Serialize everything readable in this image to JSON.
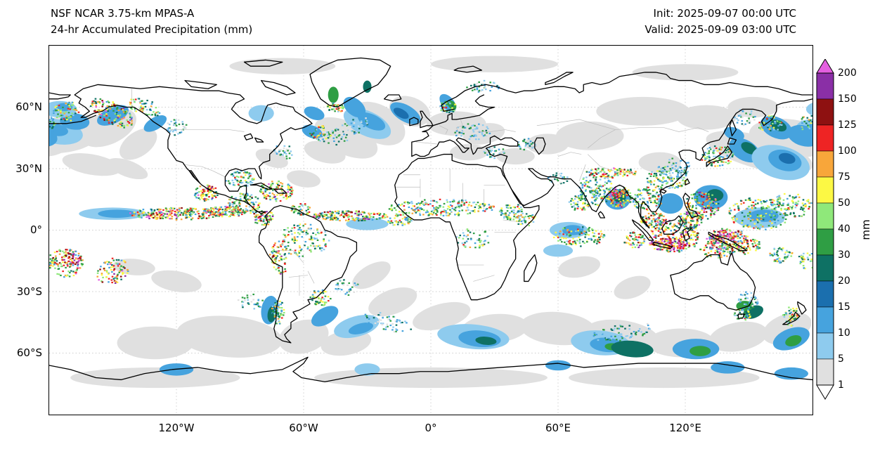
{
  "header": {
    "title_line1": "NSF NCAR 3.75-km MPAS-A",
    "title_line2": "24-hr Accumulated Precipitation (mm)",
    "init_label": "Init: 2025-09-07 00:00 UTC",
    "valid_label": "Valid: 2025-09-09 03:00 UTC"
  },
  "map": {
    "lat_ticks": [
      "60°N",
      "30°N",
      "0°",
      "30°S",
      "60°S"
    ],
    "lon_ticks": [
      "120°W",
      "60°W",
      "0°",
      "60°E",
      "120°E"
    ]
  },
  "colorbar": {
    "unit": "mm",
    "tick_labels": [
      "200",
      "150",
      "125",
      "100",
      "75",
      "50",
      "40",
      "30",
      "20",
      "15",
      "10",
      "5",
      "1"
    ],
    "interval_colors_bottom_to_top": [
      "#e0e0e0",
      "#8ecbee",
      "#46a3de",
      "#1b6fae",
      "#0e7164",
      "#2f9e44",
      "#8fe87a",
      "#fcf844",
      "#f8a63a",
      "#ee2424",
      "#8e1111",
      "#8a2fa6"
    ],
    "over_color": "#e45fe0",
    "under_color": "#ffffff"
  },
  "chart_data": {
    "type": "heatmap",
    "title": "24-hr Accumulated Precipitation (mm)",
    "model": "NSF NCAR 3.75-km MPAS-A",
    "init": "2025-09-07 00:00 UTC",
    "valid": "2025-09-09 03:00 UTC",
    "colorbar_levels_mm": [
      1,
      5,
      10,
      15,
      20,
      30,
      40,
      50,
      75,
      100,
      125,
      150,
      200
    ],
    "colorbar_unit": "mm",
    "x_tick_labels": [
      "120°W",
      "60°W",
      "0°",
      "60°E",
      "120°E"
    ],
    "y_tick_labels": [
      "60°N",
      "30°N",
      "0°",
      "30°S",
      "60°S"
    ]
  }
}
